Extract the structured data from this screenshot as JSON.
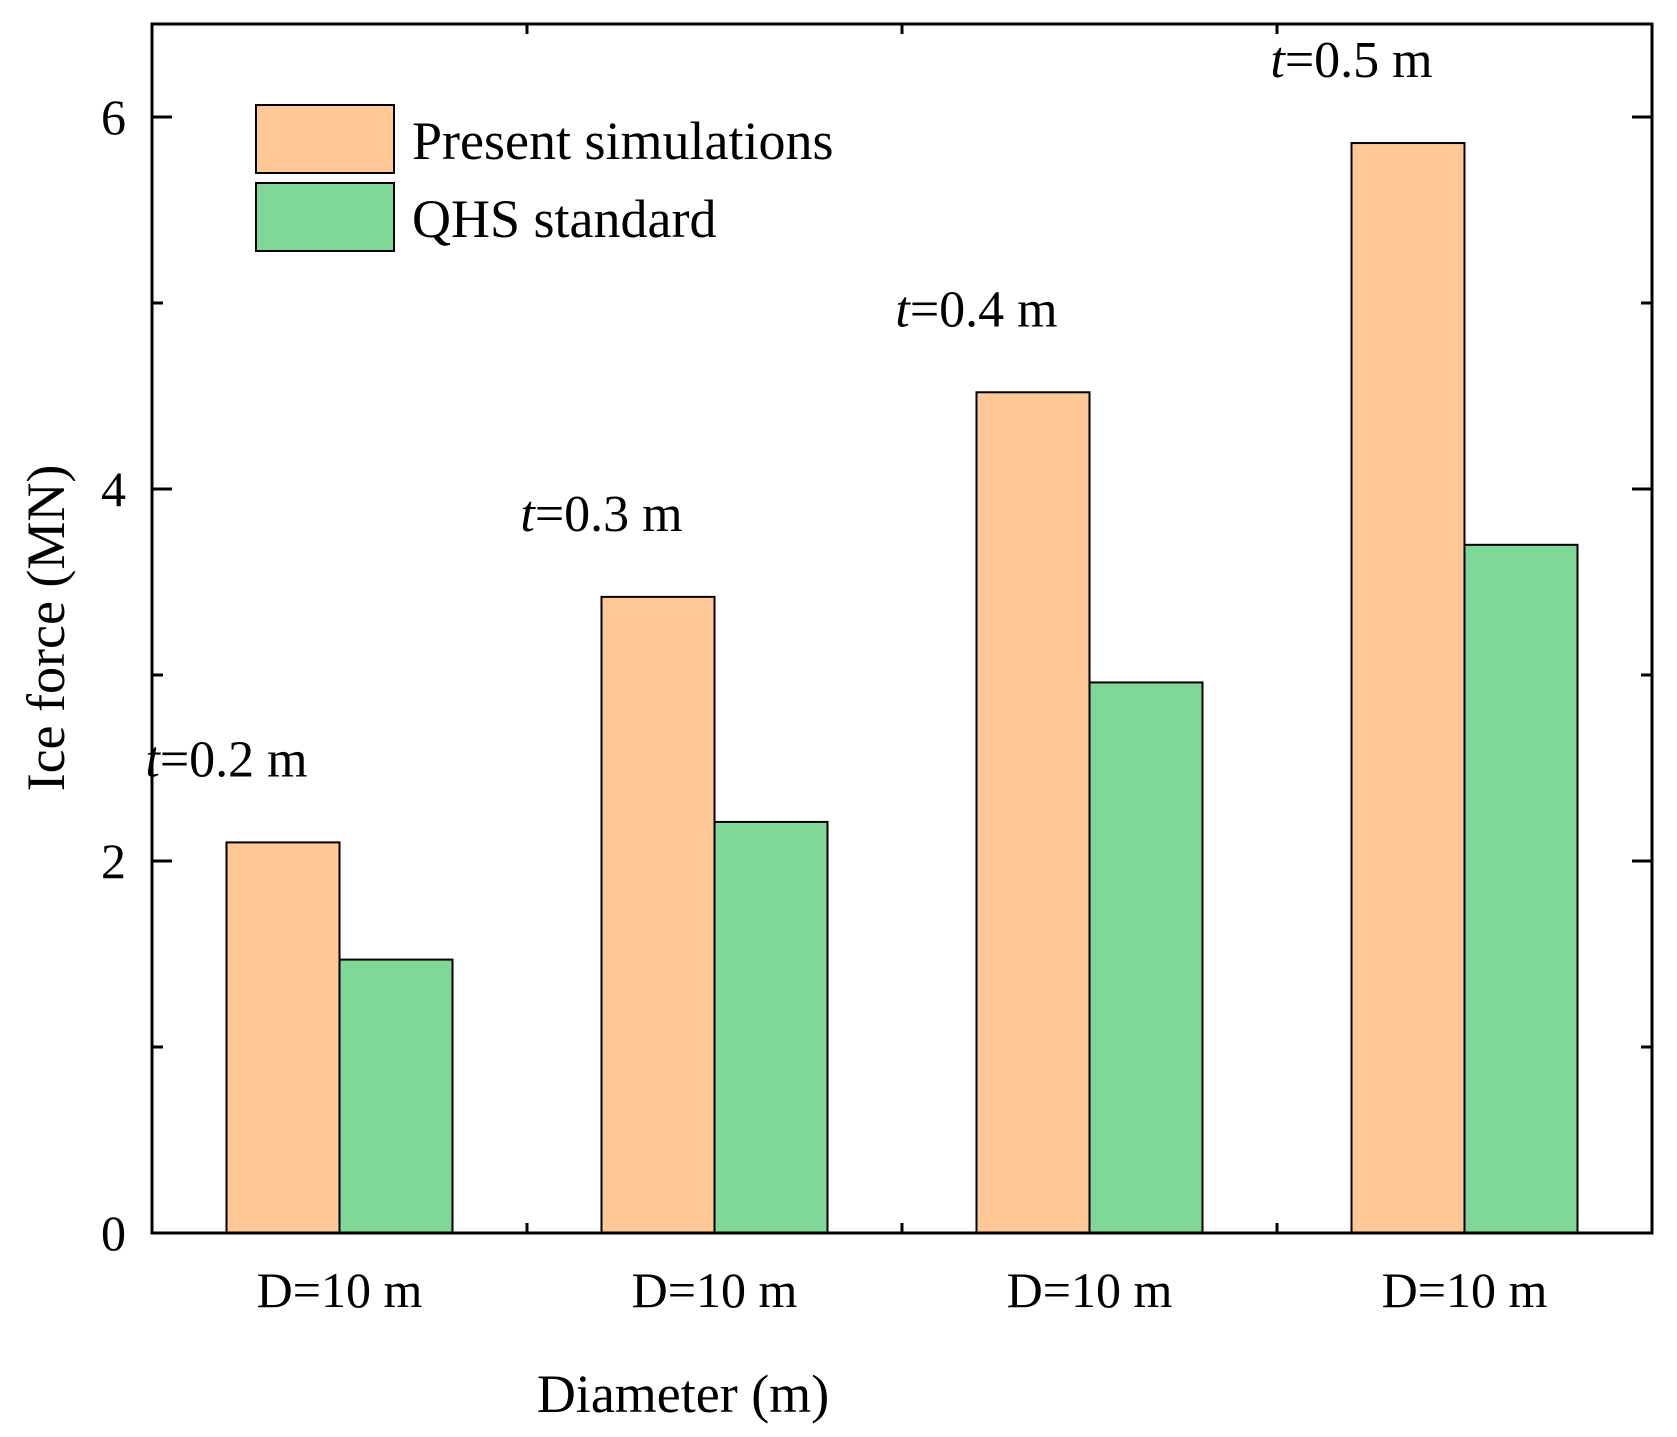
{
  "chart_data": {
    "type": "bar",
    "categories": [
      "D=10 m",
      "D=10 m",
      "D=10 m",
      "D=10 m"
    ],
    "series": [
      {
        "name": "Present simulations",
        "color": "#FFC896",
        "values": [
          2.1,
          3.42,
          4.52,
          5.86
        ]
      },
      {
        "name": "QHS standard",
        "color": "#7FD898",
        "values": [
          1.47,
          2.21,
          2.96,
          3.7
        ]
      }
    ],
    "annotations": [
      {
        "italic": "t",
        "rest": "=0.2 m",
        "category_index": 0
      },
      {
        "italic": "t",
        "rest": "=0.3 m",
        "category_index": 1
      },
      {
        "italic": "t",
        "rest": "=0.4 m",
        "category_index": 2
      },
      {
        "italic": "t",
        "rest": "=0.5 m",
        "category_index": 3
      }
    ],
    "xlabel": "Diameter (m)",
    "ylabel": "Ice force (MN)",
    "ylim": [
      0,
      6.5
    ],
    "yticks_major": [
      0,
      2,
      4,
      6
    ],
    "yticks_minor": [
      1,
      3,
      5
    ],
    "legend_position": "top-left",
    "grid": false
  }
}
